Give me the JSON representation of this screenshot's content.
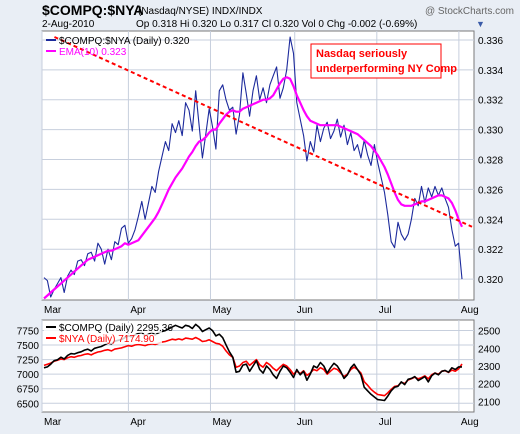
{
  "header": {
    "symbol": "$COMPQ:$NYA",
    "symbol_desc": "(Nasdaq/NYSE)  INDX/INDX",
    "watermark": "@ StockCharts.com",
    "date": "2-Aug-2010",
    "quote": "Op 0.318  Hi 0.320  Lo 0.317  Cl 0.320  Vol 0  Chg -0.002 (-0.69%)",
    "quote_arrow": "▼"
  },
  "annotation": {
    "line1": "Nasdaq seriously",
    "line2": "underperforming NY Comp"
  },
  "colors": {
    "ratio": "#1c2a9c",
    "ema": "#ff00ff",
    "compq": "#000000",
    "nya": "#ff0000",
    "annotation": "#ff0000",
    "background": "#e9eef5",
    "plot_bg": "#ffffff",
    "grid": "#c7cfdd"
  },
  "chart_data": [
    {
      "type": "line",
      "legend": [
        {
          "name": "$COMPQ:$NYA (Daily) 0.320",
          "color": "#1c2a9c"
        },
        {
          "name": "EMA(10) 0.323",
          "color": "#ff00ff"
        }
      ],
      "legend_position": "top-left",
      "x_ticks": [
        "Mar",
        "Apr",
        "May",
        "Jun",
        "Jul",
        "Aug"
      ],
      "y_ticks": [
        "0.320",
        "0.322",
        "0.324",
        "0.326",
        "0.328",
        "0.330",
        "0.332",
        "0.334",
        "0.336"
      ],
      "ylim": [
        0.3186,
        0.3366
      ],
      "grid": true,
      "series": [
        {
          "name": "$COMPQ:$NYA (Daily) 0.320",
          "color": "#1c2a9c",
          "values": [
            0.3201,
            0.3199,
            0.3188,
            0.3193,
            0.3197,
            0.3201,
            0.3191,
            0.3202,
            0.3206,
            0.3203,
            0.3212,
            0.3213,
            0.3209,
            0.3217,
            0.3218,
            0.3212,
            0.3224,
            0.322,
            0.321,
            0.322,
            0.3213,
            0.3225,
            0.3223,
            0.3234,
            0.3236,
            0.3224,
            0.3227,
            0.3233,
            0.3242,
            0.3252,
            0.324,
            0.3251,
            0.3262,
            0.3258,
            0.3272,
            0.3282,
            0.3292,
            0.3286,
            0.3304,
            0.3298,
            0.3306,
            0.3296,
            0.3318,
            0.3313,
            0.3299,
            0.3326,
            0.3303,
            0.3281,
            0.3297,
            0.3314,
            0.3302,
            0.3287,
            0.3326,
            0.333,
            0.332,
            0.3313,
            0.3315,
            0.3297,
            0.331,
            0.3338,
            0.3324,
            0.3309,
            0.3326,
            0.3336,
            0.332,
            0.3328,
            0.3318,
            0.333,
            0.3336,
            0.3342,
            0.3321,
            0.3328,
            0.334,
            0.3362,
            0.3351,
            0.3318,
            0.3307,
            0.3296,
            0.3279,
            0.3292,
            0.3285,
            0.3303,
            0.3292,
            0.3301,
            0.3305,
            0.3294,
            0.3299,
            0.3307,
            0.3295,
            0.3303,
            0.329,
            0.3298,
            0.3286,
            0.329,
            0.3281,
            0.3293,
            0.3283,
            0.3276,
            0.329,
            0.3278,
            0.3268,
            0.3258,
            0.3243,
            0.3225,
            0.3221,
            0.3238,
            0.323,
            0.3226,
            0.323,
            0.324,
            0.3254,
            0.3249,
            0.3262,
            0.3251,
            0.3261,
            0.3255,
            0.3262,
            0.3256,
            0.3261,
            0.3254,
            0.3248,
            0.3233,
            0.3222,
            0.3224,
            0.32
          ]
        },
        {
          "name": "EMA(10) 0.323",
          "color": "#ff00ff",
          "values": [
            0.3187,
            0.3189,
            0.3191,
            0.3193,
            0.3195,
            0.3197,
            0.3199,
            0.3201,
            0.3203,
            0.3205,
            0.3207,
            0.3209,
            0.3211,
            0.3213,
            0.3214,
            0.3215,
            0.3216,
            0.3217,
            0.3218,
            0.3219,
            0.3219,
            0.322,
            0.3221,
            0.3222,
            0.3224,
            0.3223,
            0.3224,
            0.3225,
            0.3226,
            0.3229,
            0.3232,
            0.3235,
            0.3238,
            0.3241,
            0.3245,
            0.325,
            0.3255,
            0.326,
            0.3264,
            0.3268,
            0.3271,
            0.3274,
            0.3278,
            0.3282,
            0.3285,
            0.3289,
            0.3292,
            0.3293,
            0.3295,
            0.3298,
            0.33,
            0.33,
            0.3304,
            0.3307,
            0.331,
            0.3312,
            0.3313,
            0.3312,
            0.3312,
            0.3314,
            0.3315,
            0.3316,
            0.3317,
            0.3318,
            0.3319,
            0.332,
            0.332,
            0.3321,
            0.3323,
            0.3327,
            0.3331,
            0.3334,
            0.3335,
            0.3334,
            0.3329,
            0.3323,
            0.3318,
            0.3313,
            0.3309,
            0.3306,
            0.3305,
            0.3304,
            0.3303,
            0.3303,
            0.3303,
            0.3303,
            0.3303,
            0.3303,
            0.3302,
            0.3301,
            0.33,
            0.3299,
            0.3298,
            0.3297,
            0.3295,
            0.3293,
            0.3291,
            0.3289,
            0.3286,
            0.3283,
            0.3279,
            0.3275,
            0.327,
            0.3264,
            0.3258,
            0.3253,
            0.325,
            0.3249,
            0.3249,
            0.3249,
            0.325,
            0.3251,
            0.3252,
            0.3252,
            0.3253,
            0.3254,
            0.3255,
            0.3256,
            0.3256,
            0.3255,
            0.3254,
            0.3251,
            0.3246,
            0.324,
            0.3235
          ]
        }
      ],
      "trendline": {
        "color": "#ff0000",
        "from": [
          0.025,
          0.3362
        ],
        "to": [
          1.06,
          0.3235
        ]
      }
    },
    {
      "type": "line",
      "legend": [
        {
          "name": "$COMPQ (Daily) 2295.36",
          "color": "#000000"
        },
        {
          "name": "$NYA (Daily) 7174.90",
          "color": "#ff0000"
        }
      ],
      "legend_position": "top-left",
      "x_ticks": [
        "Mar",
        "Apr",
        "May",
        "Jun",
        "Jul",
        "Aug"
      ],
      "y_ticks_left": [
        "6500",
        "6750",
        "7000",
        "7250",
        "7500",
        "7750"
      ],
      "y_ticks_right": [
        "2100",
        "2200",
        "2300",
        "2400",
        "2500"
      ],
      "ylim_left": [
        6350,
        7930
      ],
      "ylim_right": [
        2040,
        2560
      ],
      "grid": true,
      "series": [
        {
          "name": "$COMPQ (Daily) 2295.36",
          "color": "#000000",
          "axis": "right",
          "values": [
            2290,
            2295,
            2310,
            2330,
            2335,
            2350,
            2340,
            2360,
            2370,
            2368,
            2375,
            2380,
            2390,
            2395,
            2385,
            2400,
            2405,
            2410,
            2420,
            2430,
            2425,
            2440,
            2445,
            2450,
            2460,
            2470,
            2465,
            2475,
            2485,
            2490,
            2470,
            2480,
            2490,
            2475,
            2488,
            2495,
            2500,
            2510,
            2520,
            2530,
            2522,
            2515,
            2530,
            2525,
            2512,
            2535,
            2520,
            2495,
            2505,
            2515,
            2500,
            2470,
            2480,
            2460,
            2420,
            2380,
            2350,
            2265,
            2270,
            2305,
            2310,
            2270,
            2300,
            2330,
            2280,
            2260,
            2300,
            2280,
            2250,
            2230,
            2270,
            2300,
            2290,
            2265,
            2235,
            2280,
            2250,
            2270,
            2220,
            2255,
            2300,
            2290,
            2320,
            2300,
            2260,
            2290,
            2315,
            2300,
            2270,
            2230,
            2250,
            2290,
            2310,
            2280,
            2250,
            2180,
            2160,
            2140,
            2125,
            2110,
            2108,
            2105,
            2130,
            2160,
            2180,
            2185,
            2210,
            2195,
            2225,
            2230,
            2240,
            2218,
            2228,
            2240,
            2210,
            2245,
            2260,
            2250,
            2270,
            2275,
            2265,
            2290,
            2280,
            2295,
            2295
          ]
        },
        {
          "name": "$NYA (Daily) 7174.90",
          "color": "#ff0000",
          "axis": "left",
          "values": [
            7150,
            7170,
            7190,
            7220,
            7240,
            7260,
            7250,
            7280,
            7300,
            7290,
            7310,
            7320,
            7340,
            7350,
            7330,
            7360,
            7380,
            7390,
            7410,
            7420,
            7400,
            7430,
            7440,
            7450,
            7470,
            7490,
            7480,
            7500,
            7510,
            7500,
            7490,
            7510,
            7520,
            7510,
            7530,
            7550,
            7560,
            7580,
            7600,
            7590,
            7605,
            7590,
            7620,
            7610,
            7600,
            7630,
            7600,
            7560,
            7570,
            7590,
            7560,
            7530,
            7520,
            7480,
            7400,
            7330,
            7290,
            7120,
            7140,
            7200,
            7220,
            7150,
            7200,
            7250,
            7160,
            7120,
            7200,
            7160,
            7100,
            7060,
            7120,
            7170,
            7140,
            7080,
            7000,
            7050,
            7010,
            7060,
            6980,
            7020,
            7080,
            7060,
            7110,
            7080,
            7000,
            7050,
            7100,
            7080,
            7020,
            6960,
            7000,
            7080,
            7120,
            7080,
            7020,
            6870,
            6810,
            6740,
            6690,
            6650,
            6640,
            6630,
            6680,
            6740,
            6790,
            6800,
            6860,
            6840,
            6900,
            6920,
            6950,
            6920,
            6940,
            6970,
            6920,
            6990,
            7020,
            7000,
            7050,
            7060,
            7030,
            7070,
            7050,
            7090,
            7175
          ]
        }
      ]
    }
  ]
}
